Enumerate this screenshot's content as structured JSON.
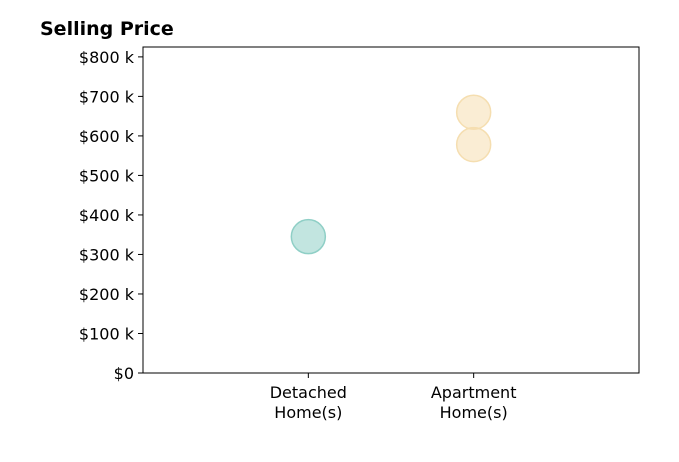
{
  "chart_data": {
    "type": "scatter",
    "title": "Selling Price",
    "xlabel": "",
    "ylabel": "",
    "categories": [
      [
        "Detached",
        "Home(s)"
      ],
      [
        "Apartment",
        "Home(s)"
      ]
    ],
    "xlim": [
      -1,
      2
    ],
    "ylim": [
      0,
      825000
    ],
    "yticks": [
      0,
      100000,
      200000,
      300000,
      400000,
      500000,
      600000,
      700000,
      800000
    ],
    "ytick_labels": [
      "$0",
      "$100 k",
      "$200 k",
      "$300 k",
      "$400 k",
      "$500 k",
      "$600 k",
      "$700 k",
      "$800 k"
    ],
    "grid": false,
    "points": [
      {
        "x": 0,
        "y": 345000,
        "color": "#8fcfc6"
      },
      {
        "x": 1,
        "y": 660000,
        "color": "#f5deb0"
      },
      {
        "x": 1,
        "y": 578000,
        "color": "#f5deb0"
      }
    ]
  }
}
